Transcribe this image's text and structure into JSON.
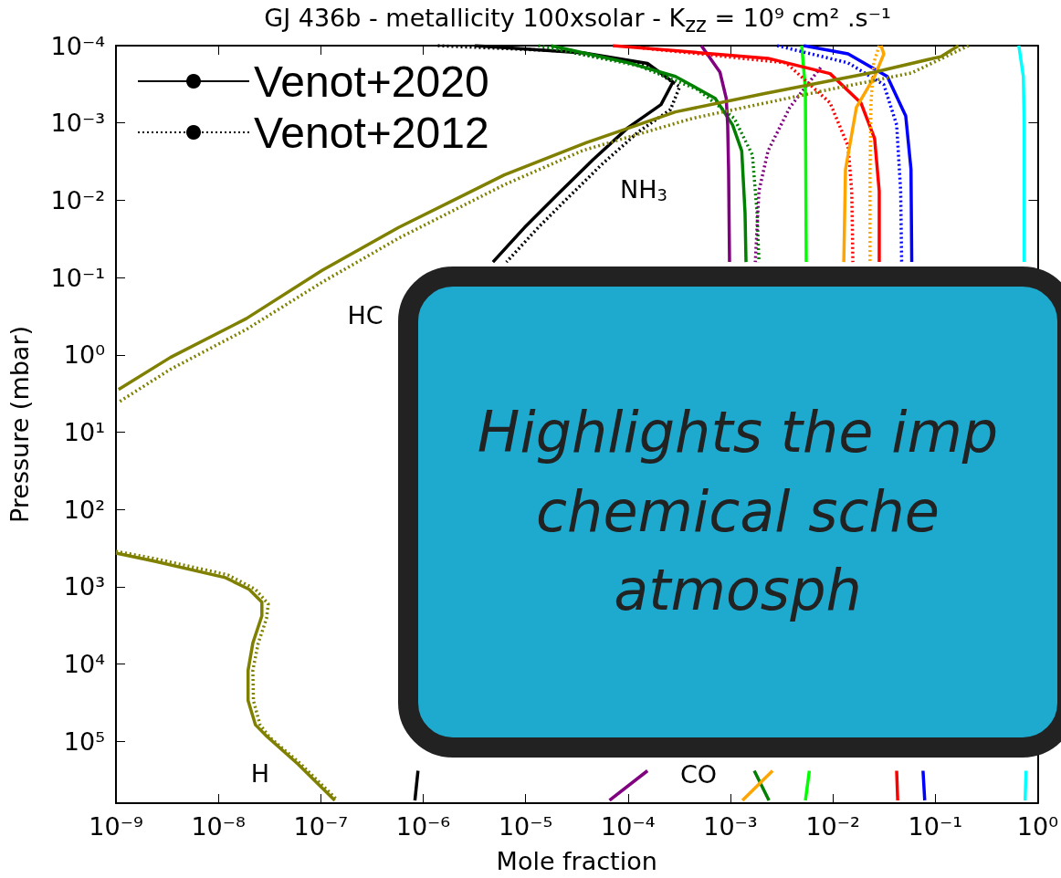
{
  "chart_data": {
    "type": "line",
    "title": "GJ 436b - metallicity 100xsolar - K$_{zz}$ = 10⁹  cm² .s⁻¹",
    "xlabel": "Mole fraction",
    "ylabel": "Pressure (mbar)",
    "log": "xy",
    "grid": false,
    "legend": "top left",
    "marker": "none",
    "xlim": [
      1e-09,
      1
    ],
    "ylim": [
      630000,
      0.0001
    ],
    "xticks": [
      {
        "value": 1e-09,
        "label": "10⁻⁹"
      },
      {
        "value": 1e-08,
        "label": "10⁻⁸"
      },
      {
        "value": 1e-07,
        "label": "10⁻⁷"
      },
      {
        "value": 1e-06,
        "label": "10⁻⁶"
      },
      {
        "value": 1e-05,
        "label": "10⁻⁵"
      },
      {
        "value": 0.0001,
        "label": "10⁻⁴"
      },
      {
        "value": 0.001,
        "label": "10⁻³"
      },
      {
        "value": 0.01,
        "label": "10⁻²"
      },
      {
        "value": 0.1,
        "label": "10⁻¹"
      },
      {
        "value": 1,
        "label": "10⁰"
      }
    ],
    "yticks": [
      {
        "value": 0.0001,
        "label": "10⁻⁴"
      },
      {
        "value": 0.001,
        "label": "10⁻³"
      },
      {
        "value": 0.01,
        "label": "10⁻²"
      },
      {
        "value": 0.1,
        "label": "10⁻¹"
      },
      {
        "value": 1,
        "label": "10⁰"
      },
      {
        "value": 10,
        "label": "10¹"
      },
      {
        "value": 100,
        "label": "10²"
      },
      {
        "value": 1000,
        "label": "10³"
      },
      {
        "value": 10000,
        "label": "10⁴"
      },
      {
        "value": 100000,
        "label": "10⁵"
      }
    ],
    "annotations": [
      "NH$_{3}$",
      "HC",
      "H",
      "CO",
      "Highlights the imp",
      "chemical sche",
      "atmosph"
    ],
    "series": [
      {
        "name": "Venot+2020",
        "color": "#000000",
        "line_style": "solid",
        "x": [
          3.2e-06,
          3.7e-05,
          0.000155,
          0.000275,
          0.00021,
          0.0001,
          4.6e-05,
          2e-05,
          9.8e-06,
          4.8e-06,
          null,
          8.9e-07,
          8.3e-07
        ],
        "values": [
          0.0001,
          0.000124,
          0.00017,
          0.000295,
          0.00058,
          0.00115,
          0.00295,
          0.0087,
          0.0224,
          0.063,
          null,
          240000,
          580000
        ]
      },
      {
        "name": "Venot+2012",
        "color": "#000000",
        "line_style": "dotted",
        "x": [
          1.39e-06,
          2.45e-05,
          0.000155,
          0.00032,
          0.00026,
          0.000126,
          5.6e-05,
          2.45e-05,
          1.33e-05,
          6.5e-06
        ],
        "values": [
          0.0001,
          0.000118,
          0.000182,
          0.00034,
          0.00067,
          0.00131,
          0.0034,
          0.01,
          0.0225,
          0.063
        ]
      },
      {
        "color": "#008000",
        "line_style": "solid",
        "x": [
          1.77e-05,
          0.000102,
          0.00029,
          0.00071,
          0.00105,
          0.00129,
          0.00139,
          0.00142,
          null,
          0.00171,
          0.00238
        ],
        "values": [
          0.0001,
          0.000167,
          0.00025,
          0.00048,
          0.00106,
          0.0023,
          0.0146,
          0.063,
          null,
          240000,
          580000
        ]
      },
      {
        "color": "#008000",
        "line_style": "dotted",
        "x": [
          1.33e-05,
          0.000126,
          0.00048,
          0.00109,
          0.00164,
          0.00182,
          0.0019
        ],
        "values": [
          0.0001,
          0.000182,
          0.00037,
          0.00087,
          0.0026,
          0.0146,
          0.063
        ]
      },
      {
        "color": "#800080",
        "line_style": "solid",
        "x": [
          0.00052,
          0.00079,
          0.00091,
          0.00094,
          0.00096,
          0.00098,
          null,
          0.000155,
          6.6e-05
        ],
        "values": [
          0.0001,
          0.00022,
          0.00048,
          0.00106,
          0.004,
          0.063,
          null,
          240000,
          580000
        ]
      },
      {
        "color": "#800080",
        "line_style": "dotted",
        "x": [
          0.0076,
          0.0038,
          0.00233,
          0.0019,
          0.00175
        ],
        "values": [
          0.000192,
          0.00063,
          0.0023,
          0.0076,
          0.063
        ]
      },
      {
        "color": "#00ff00",
        "line_style": "solid",
        "x": [
          0.00497,
          0.0054,
          0.0055,
          null,
          0.0059,
          0.0054
        ],
        "values": [
          0.0001,
          0.00037,
          0.063,
          null,
          240000,
          580000
        ]
      },
      {
        "color": "#ff0000",
        "line_style": "solid",
        "x": [
          7.1e-05,
          0.00233,
          0.0094,
          0.0188,
          0.0256,
          0.0284,
          0.0284,
          null,
          0.042,
          0.043
        ],
        "values": [
          0.0001,
          0.000146,
          0.00023,
          0.00055,
          0.0016,
          0.0076,
          0.063,
          null,
          240000,
          580000
        ]
      },
      {
        "color": "#ff0000",
        "line_style": "dotted",
        "x": [
          0.000126,
          0.0035,
          0.0094,
          0.0141,
          0.0153,
          0.0157
        ],
        "values": [
          0.000106,
          0.000167,
          0.00055,
          0.002,
          0.0076,
          0.063
        ]
      },
      {
        "color": "#0000ff",
        "line_style": "solid",
        "x": [
          0.0052,
          0.0141,
          0.034,
          0.0515,
          0.058,
          0.059,
          null,
          0.076,
          0.079
        ],
        "values": [
          0.0001,
          0.000128,
          0.00025,
          0.00081,
          0.004,
          0.063,
          null,
          240000,
          580000
        ]
      },
      {
        "color": "#0000ff",
        "line_style": "dotted",
        "x": [
          0.00286,
          0.0141,
          0.0315,
          0.042,
          0.046,
          0.047
        ],
        "values": [
          0.0001,
          0.000167,
          0.00032,
          0.00106,
          0.0076,
          0.063
        ]
      },
      {
        "color": "#ffa500",
        "line_style": "solid",
        "x": [
          0.0296,
          0.0315,
          0.0256,
          0.017,
          0.0133,
          0.0128,
          null,
          0.00258,
          0.00131
        ],
        "values": [
          0.0001,
          0.000128,
          0.00025,
          0.00063,
          0.004,
          0.063,
          null,
          240000,
          580000
        ]
      },
      {
        "color": "#ffa500",
        "line_style": "dotted",
        "x": [
          0.0284,
          0.0251,
          0.0236,
          0.0231,
          0.0231
        ],
        "values": [
          0.0001,
          0.000167,
          0.00055,
          0.004,
          0.063
        ]
      },
      {
        "color": "#00ffff",
        "line_style": "solid",
        "x": [
          0.655,
          0.725,
          0.74,
          0.74,
          null,
          0.77,
          0.755
        ],
        "values": [
          0.0001,
          0.00025,
          0.00106,
          0.063,
          null,
          240000,
          580000
        ]
      },
      {
        "color": "#808000",
        "line_style": "solid",
        "x": [
          0.169,
          0.115,
          0.0256,
          0.0021,
          0.00029,
          3.9e-05,
          6.2e-06,
          5.75e-07,
          1.03e-07,
          1.87e-08,
          3.4e-09,
          1.06e-09
        ],
        "values": [
          0.0001,
          0.000138,
          0.00022,
          0.00042,
          0.00072,
          0.0018,
          0.0047,
          0.0225,
          0.081,
          0.34,
          1.08,
          2.8
        ]
      },
      {
        "color": "#808000",
        "line_style": "dotted",
        "x": [
          0.212,
          0.059,
          0.0076,
          0.00043,
          3.7e-05,
          6.2e-06,
          5.75e-07,
          1.03e-07,
          1.87e-08,
          3.4e-09,
          1.06e-09
        ],
        "values": [
          0.0001,
          0.000225,
          0.00039,
          0.00087,
          0.00225,
          0.0063,
          0.031,
          0.115,
          0.47,
          1.54,
          4.1
        ]
      },
      {
        "color": "#808000",
        "line_style": "solid",
        "x": [
          1e-09,
          2.4e-09,
          1.17e-08,
          2e-08,
          2.66e-08,
          2.66e-08,
          2.17e-08,
          1.95e-08,
          1.95e-08,
          2.3e-08,
          3e-08,
          6e-08,
          1.37e-07
        ],
        "values": [
          367,
          469,
          762,
          1080,
          1580,
          2380,
          5360,
          12100,
          29600,
          61000,
          87000,
          197000,
          580000
        ]
      },
      {
        "color": "#808000",
        "line_style": "dotted",
        "x": [
          1e-09,
          2.4e-09,
          1.24e-08,
          2.3e-08,
          3.07e-08,
          2.95e-08,
          2.45e-08,
          2.17e-08,
          2.2e-08,
          2.55e-08,
          3.13e-08,
          6.4e-08,
          1.46e-07
        ],
        "values": [
          348,
          432,
          703,
          1080,
          1670,
          2580,
          5360,
          12100,
          29600,
          61000,
          87000,
          197000,
          580000
        ]
      }
    ]
  }
}
